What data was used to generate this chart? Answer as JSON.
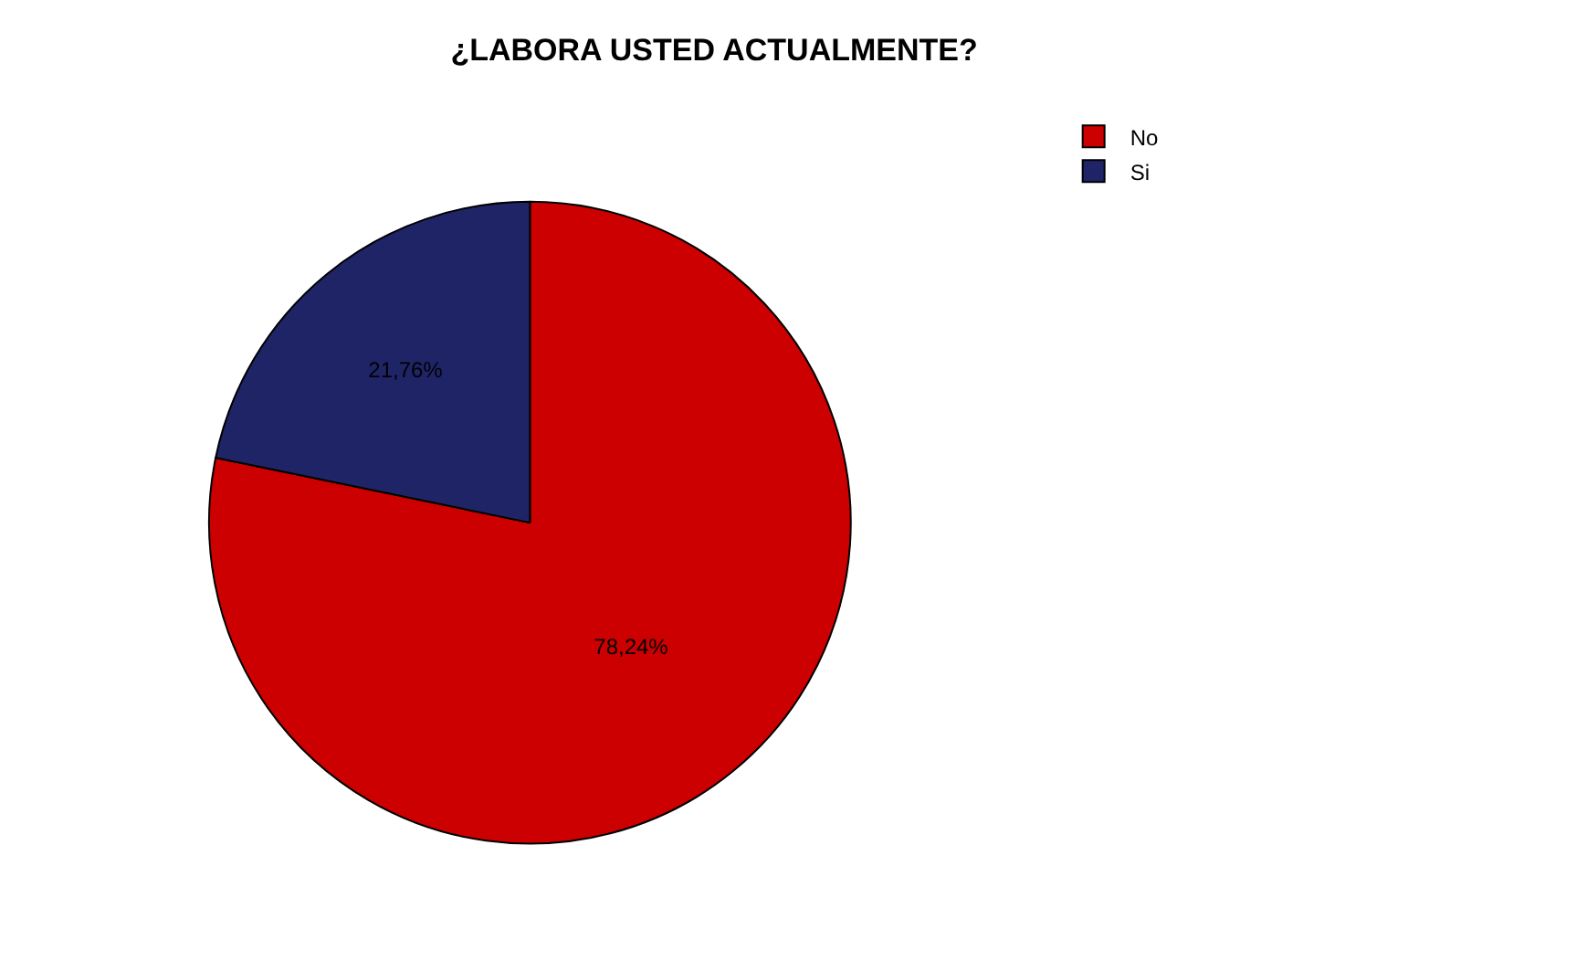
{
  "chart_data": {
    "type": "pie",
    "title": "¿LABORA USTED ACTUALMENTE?",
    "categories": [
      "No",
      "Si"
    ],
    "values": [
      78.24,
      21.76
    ],
    "colors": [
      "#cc0000",
      "#1f2466"
    ],
    "value_labels": [
      "78,24%",
      "21,76%"
    ],
    "legend": "top right"
  }
}
